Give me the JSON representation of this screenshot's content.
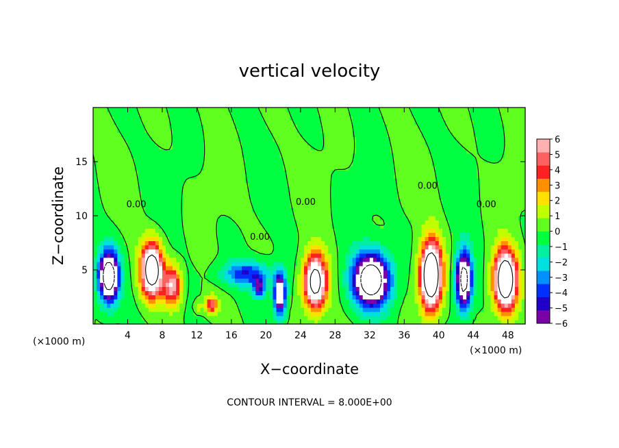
{
  "chart_data": {
    "type": "heatmap",
    "title": "vertical velocity",
    "xlabel": "X−coordinate",
    "ylabel": "Z−coordinate",
    "x_unit_left": "(×1000 m)",
    "x_unit_right": "(×1000 m)",
    "xlim": [
      0,
      50
    ],
    "ylim": [
      0,
      20
    ],
    "xticks": [
      4,
      8,
      12,
      16,
      20,
      24,
      28,
      32,
      36,
      40,
      44,
      48
    ],
    "yticks": [
      5,
      10,
      15
    ],
    "colorbar": {
      "min": -6,
      "max": 6,
      "ticks": [
        6,
        5,
        4,
        3,
        2,
        1,
        0,
        -1,
        -2,
        -3,
        -4,
        -5,
        -6
      ],
      "tick_labels": [
        "6",
        "5",
        "4",
        "3",
        "2",
        "1",
        "0",
        "−1",
        "−2",
        "−3",
        "−4",
        "−5",
        "−6"
      ],
      "colors": [
        "#7a00a8",
        "#2000c8",
        "#0030ff",
        "#0090ff",
        "#00e0e0",
        "#00f0a0",
        "#00ff40",
        "#60ff20",
        "#c0ff00",
        "#ffe000",
        "#ff9000",
        "#ff2020",
        "#ff6060",
        "#ffb0b0"
      ]
    },
    "contour_labels": [
      {
        "text": "0.00",
        "x": 5.0,
        "y": 10.8
      },
      {
        "text": "0.00",
        "x": 19.3,
        "y": 7.8
      },
      {
        "text": "0.00",
        "x": 24.6,
        "y": 11.0
      },
      {
        "text": "0.00",
        "x": 38.7,
        "y": 12.5
      },
      {
        "text": "0.00",
        "x": 45.5,
        "y": 10.8
      }
    ],
    "annotation": "CONTOUR INTERVAL = 8.000E+00"
  }
}
